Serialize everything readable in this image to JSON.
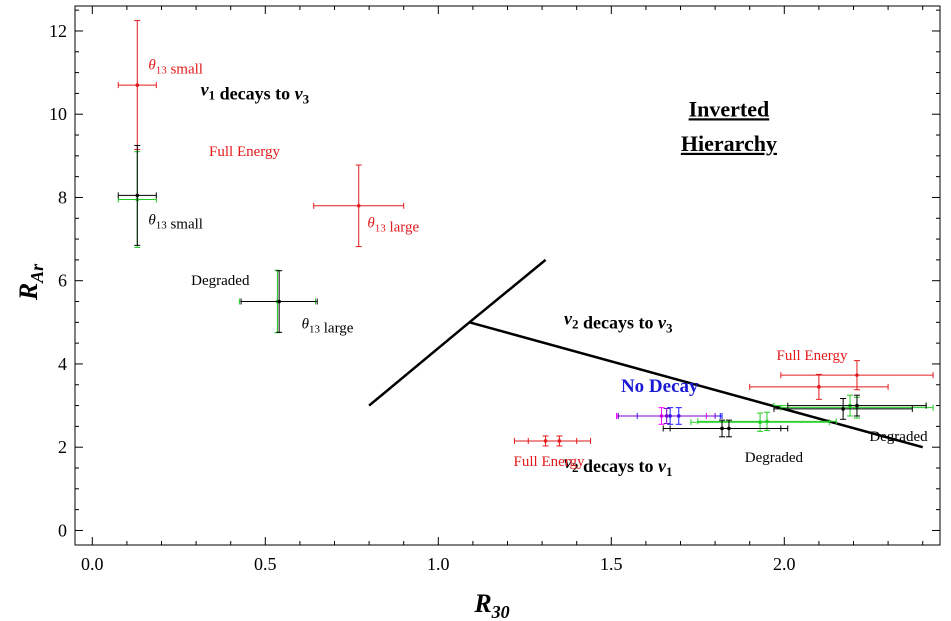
{
  "chart_data": {
    "type": "scatter",
    "xlabel": "R",
    "xlabel_sub": "30",
    "ylabel": "R",
    "ylabel_sub": "Ar",
    "xlim": [
      -0.05,
      2.45
    ],
    "ylim": [
      -0.35,
      12.6
    ],
    "xticks": [
      0.0,
      0.5,
      1.0,
      1.5,
      2.0
    ],
    "xtick_labels": [
      "0.0",
      "0.5",
      "1.0",
      "1.5",
      "2.0"
    ],
    "yticks": [
      0,
      2,
      4,
      6,
      8,
      10,
      12
    ],
    "ytick_labels": [
      "0",
      "2",
      "4",
      "6",
      "8",
      "10",
      "12"
    ],
    "grid": false,
    "colors": {
      "red": "#e31a1c",
      "green": "#22cc22",
      "black": "#000000",
      "blue": "#1a1aff",
      "magenta": "#ff00ff",
      "purple": "#7b00d6",
      "text_blue": "#1a1ad6"
    },
    "series": [
      {
        "color": "red",
        "points": [
          {
            "x": 0.13,
            "y": 10.7,
            "xerr": 0.055,
            "yerr": 1.55
          },
          {
            "x": 0.77,
            "y": 7.8,
            "xerr": 0.13,
            "yerr": 0.98
          },
          {
            "x": 1.31,
            "y": 2.15,
            "xerr": 0.09,
            "yerr": 0.12
          },
          {
            "x": 1.35,
            "y": 2.15,
            "xerr": 0.09,
            "yerr": 0.12
          },
          {
            "x": 2.1,
            "y": 3.45,
            "xerr": 0.2,
            "yerr": 0.3
          },
          {
            "x": 2.21,
            "y": 3.73,
            "xerr": 0.22,
            "yerr": 0.35
          }
        ]
      },
      {
        "color": "green",
        "points": [
          {
            "x": 0.13,
            "y": 7.95,
            "xerr": 0.055,
            "yerr": 1.15
          },
          {
            "x": 0.535,
            "y": 5.5,
            "xerr": 0.11,
            "yerr": 0.75
          },
          {
            "x": 1.93,
            "y": 2.6,
            "xerr": 0.2,
            "yerr": 0.22
          },
          {
            "x": 1.95,
            "y": 2.62,
            "xerr": 0.2,
            "yerr": 0.22
          },
          {
            "x": 2.21,
            "y": 2.95,
            "xerr": 0.22,
            "yerr": 0.25
          },
          {
            "x": 2.19,
            "y": 3.0,
            "xerr": 0.22,
            "yerr": 0.25
          }
        ]
      },
      {
        "color": "black",
        "points": [
          {
            "x": 0.13,
            "y": 8.05,
            "xerr": 0.055,
            "yerr": 1.2
          },
          {
            "x": 0.54,
            "y": 5.5,
            "xerr": 0.11,
            "yerr": 0.74
          },
          {
            "x": 1.82,
            "y": 2.45,
            "xerr": 0.17,
            "yerr": 0.2
          },
          {
            "x": 1.84,
            "y": 2.45,
            "xerr": 0.17,
            "yerr": 0.2
          },
          {
            "x": 2.17,
            "y": 2.92,
            "xerr": 0.2,
            "yerr": 0.25
          },
          {
            "x": 2.21,
            "y": 3.0,
            "xerr": 0.2,
            "yerr": 0.25
          }
        ]
      },
      {
        "color": "magenta",
        "points": [
          {
            "x": 1.645,
            "y": 2.75,
            "xerr": 0.13,
            "yerr": 0.2
          }
        ]
      },
      {
        "color": "blue",
        "points": [
          {
            "x": 1.67,
            "y": 2.75,
            "xerr": 0.15,
            "yerr": 0.2
          },
          {
            "x": 1.695,
            "y": 2.75,
            "xerr": 0.12,
            "yerr": 0.2
          }
        ]
      },
      {
        "color": "purple",
        "points": [
          {
            "x": 1.66,
            "y": 2.75,
            "xerr": 0.14,
            "yerr": 0.18
          }
        ]
      }
    ],
    "lines": [
      {
        "points": [
          [
            0.8,
            3.0
          ],
          [
            1.09,
            5.0
          ],
          [
            1.31,
            6.5
          ]
        ]
      },
      {
        "points": [
          [
            1.09,
            5.0
          ],
          [
            2.4,
            2.0
          ]
        ]
      }
    ],
    "annotations": [
      {
        "id": "nu1-to-nu3",
        "text": "ν1 decays to ν3",
        "parts": [
          {
            "t": "ν",
            "i": true
          },
          {
            "t": "1",
            "sub": true
          },
          {
            "t": " decays to "
          },
          {
            "t": "ν",
            "i": true
          },
          {
            "t": "3",
            "sub": true
          }
        ],
        "x": 0.47,
        "y": 10.45,
        "color": "black",
        "bold": true,
        "size": 18
      },
      {
        "id": "nu2-to-nu3",
        "text": "ν2 decays to ν3",
        "parts": [
          {
            "t": "ν",
            "i": true
          },
          {
            "t": "2",
            "sub": true
          },
          {
            "t": " decays to "
          },
          {
            "t": "ν",
            "i": true
          },
          {
            "t": "3",
            "sub": true
          }
        ],
        "x": 1.52,
        "y": 4.95,
        "color": "black",
        "bold": true,
        "size": 18
      },
      {
        "id": "nu2-to-nu1",
        "text": "ν2 decays to ν1",
        "parts": [
          {
            "t": "ν",
            "i": true
          },
          {
            "t": "2",
            "sub": true
          },
          {
            "t": " decays to "
          },
          {
            "t": "ν",
            "i": true
          },
          {
            "t": "1",
            "sub": true
          }
        ],
        "x": 1.52,
        "y": 1.5,
        "color": "black",
        "bold": true,
        "size": 18
      },
      {
        "id": "inverted",
        "text": "Inverted",
        "x": 1.84,
        "y": 9.95,
        "color": "black",
        "bold": true,
        "underline": true,
        "size": 22
      },
      {
        "id": "hierarchy",
        "text": "Hierarchy",
        "x": 1.84,
        "y": 9.12,
        "color": "black",
        "bold": true,
        "underline": true,
        "size": 22
      },
      {
        "id": "no-decay",
        "text": "No Decay",
        "x": 1.64,
        "y": 3.32,
        "color": "text_blue",
        "bold": true,
        "size": 19
      },
      {
        "id": "theta13-small-red",
        "text": "θ13 small",
        "parts": [
          {
            "t": "θ",
            "i": true
          },
          {
            "t": "13",
            "sub": true
          },
          {
            "t": " small"
          }
        ],
        "x": 0.162,
        "y": 11.08,
        "color": "red",
        "size": 15,
        "anchor": "start"
      },
      {
        "id": "full-energy-1",
        "text": "Full Energy",
        "x": 0.44,
        "y": 9.0,
        "color": "red",
        "size": 15
      },
      {
        "id": "theta13-large-red",
        "text": "θ13 large",
        "parts": [
          {
            "t": "θ",
            "i": true
          },
          {
            "t": "13",
            "sub": true
          },
          {
            "t": " large"
          }
        ],
        "x": 0.795,
        "y": 7.28,
        "color": "red",
        "size": 15,
        "anchor": "start"
      },
      {
        "id": "theta13-small-black",
        "text": "θ13 small",
        "parts": [
          {
            "t": "θ",
            "i": true
          },
          {
            "t": "13",
            "sub": true
          },
          {
            "t": " small"
          }
        ],
        "x": 0.162,
        "y": 7.35,
        "color": "black",
        "size": 15,
        "anchor": "start"
      },
      {
        "id": "degraded-1",
        "text": "Degraded",
        "x": 0.37,
        "y": 5.9,
        "color": "black",
        "size": 15
      },
      {
        "id": "theta13-large-black",
        "text": "θ13 large",
        "parts": [
          {
            "t": "θ",
            "i": true
          },
          {
            "t": "13",
            "sub": true
          },
          {
            "t": " large"
          }
        ],
        "x": 0.605,
        "y": 4.85,
        "color": "black",
        "size": 15,
        "anchor": "start"
      },
      {
        "id": "full-energy-2",
        "text": "Full Energy",
        "x": 2.08,
        "y": 4.1,
        "color": "red",
        "size": 15
      },
      {
        "id": "degraded-2",
        "text": "Degraded",
        "x": 2.33,
        "y": 2.15,
        "color": "black",
        "size": 15
      },
      {
        "id": "degraded-3",
        "text": "Degraded",
        "x": 1.97,
        "y": 1.65,
        "color": "black",
        "size": 15
      },
      {
        "id": "full-energy-3",
        "text": "Full Energy",
        "x": 1.32,
        "y": 1.55,
        "color": "red",
        "size": 15
      }
    ]
  }
}
